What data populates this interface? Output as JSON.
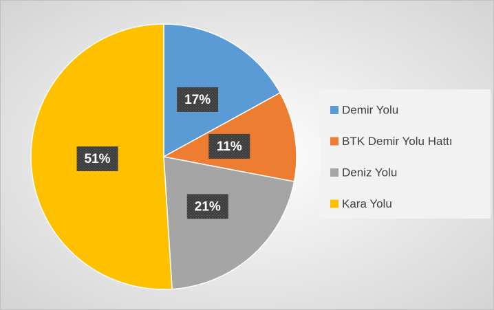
{
  "chart_data": {
    "type": "pie",
    "categories": [
      "Demir Yolu",
      "BTK Demir Yolu Hattı",
      "Deniz Yolu",
      "Kara Yolu"
    ],
    "values": [
      17,
      11,
      21,
      51
    ],
    "value_labels": [
      "17%",
      "11%",
      "21%",
      "51%"
    ],
    "colors": [
      "#5b9bd5",
      "#ed7d31",
      "#a5a5a5",
      "#ffc000"
    ],
    "legend": "right"
  }
}
